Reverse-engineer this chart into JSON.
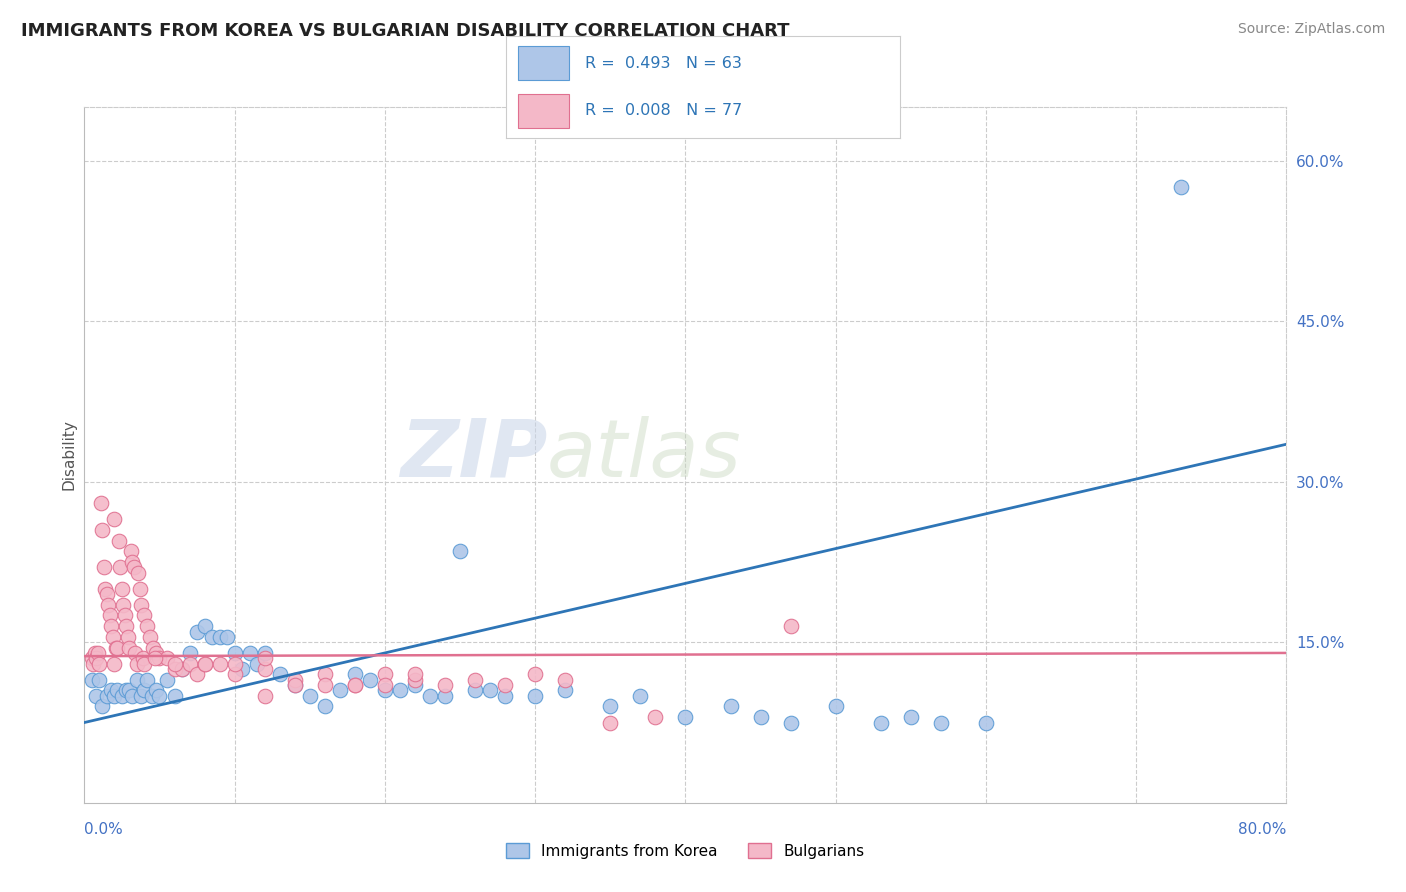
{
  "title": "IMMIGRANTS FROM KOREA VS BULGARIAN DISABILITY CORRELATION CHART",
  "source": "Source: ZipAtlas.com",
  "ylabel": "Disability",
  "right_yticks": [
    "60.0%",
    "45.0%",
    "30.0%",
    "15.0%"
  ],
  "right_ytick_vals": [
    0.6,
    0.45,
    0.3,
    0.15
  ],
  "watermark_zip": "ZIP",
  "watermark_atlas": "atlas",
  "background_color": "#ffffff",
  "plot_bg_color": "#ffffff",
  "grid_color": "#cccccc",
  "xlim": [
    0.0,
    0.8
  ],
  "ylim": [
    0.0,
    0.65
  ],
  "blue_scatter_x": [
    0.005,
    0.008,
    0.01,
    0.012,
    0.015,
    0.018,
    0.02,
    0.022,
    0.025,
    0.028,
    0.03,
    0.032,
    0.035,
    0.038,
    0.04,
    0.042,
    0.045,
    0.048,
    0.05,
    0.055,
    0.06,
    0.065,
    0.07,
    0.075,
    0.08,
    0.085,
    0.09,
    0.095,
    0.1,
    0.105,
    0.11,
    0.115,
    0.12,
    0.13,
    0.14,
    0.15,
    0.16,
    0.17,
    0.18,
    0.19,
    0.2,
    0.21,
    0.22,
    0.23,
    0.24,
    0.25,
    0.26,
    0.27,
    0.28,
    0.3,
    0.32,
    0.35,
    0.37,
    0.4,
    0.43,
    0.45,
    0.47,
    0.5,
    0.53,
    0.55,
    0.57,
    0.6,
    0.73
  ],
  "blue_scatter_y": [
    0.115,
    0.1,
    0.115,
    0.09,
    0.1,
    0.105,
    0.1,
    0.105,
    0.1,
    0.105,
    0.105,
    0.1,
    0.115,
    0.1,
    0.105,
    0.115,
    0.1,
    0.105,
    0.1,
    0.115,
    0.1,
    0.125,
    0.14,
    0.16,
    0.165,
    0.155,
    0.155,
    0.155,
    0.14,
    0.125,
    0.14,
    0.13,
    0.14,
    0.12,
    0.11,
    0.1,
    0.09,
    0.105,
    0.12,
    0.115,
    0.105,
    0.105,
    0.11,
    0.1,
    0.1,
    0.235,
    0.105,
    0.105,
    0.1,
    0.1,
    0.105,
    0.09,
    0.1,
    0.08,
    0.09,
    0.08,
    0.075,
    0.09,
    0.075,
    0.08,
    0.075,
    0.075,
    0.575
  ],
  "pink_scatter_x": [
    0.005,
    0.006,
    0.007,
    0.008,
    0.009,
    0.01,
    0.011,
    0.012,
    0.013,
    0.014,
    0.015,
    0.016,
    0.017,
    0.018,
    0.019,
    0.02,
    0.021,
    0.022,
    0.023,
    0.024,
    0.025,
    0.026,
    0.027,
    0.028,
    0.029,
    0.03,
    0.031,
    0.032,
    0.033,
    0.034,
    0.035,
    0.036,
    0.037,
    0.038,
    0.039,
    0.04,
    0.042,
    0.044,
    0.046,
    0.048,
    0.05,
    0.055,
    0.06,
    0.065,
    0.07,
    0.075,
    0.08,
    0.09,
    0.1,
    0.12,
    0.14,
    0.16,
    0.18,
    0.2,
    0.22,
    0.24,
    0.26,
    0.28,
    0.3,
    0.32,
    0.35,
    0.38,
    0.12,
    0.1,
    0.08,
    0.06,
    0.04,
    0.02,
    0.18,
    0.16,
    0.14,
    0.12,
    0.22,
    0.2,
    0.047,
    0.47
  ],
  "pink_scatter_y": [
    0.135,
    0.13,
    0.14,
    0.135,
    0.14,
    0.13,
    0.28,
    0.255,
    0.22,
    0.2,
    0.195,
    0.185,
    0.175,
    0.165,
    0.155,
    0.265,
    0.145,
    0.145,
    0.245,
    0.22,
    0.2,
    0.185,
    0.175,
    0.165,
    0.155,
    0.145,
    0.235,
    0.225,
    0.22,
    0.14,
    0.13,
    0.215,
    0.2,
    0.185,
    0.135,
    0.175,
    0.165,
    0.155,
    0.145,
    0.14,
    0.135,
    0.135,
    0.125,
    0.125,
    0.13,
    0.12,
    0.13,
    0.13,
    0.12,
    0.125,
    0.115,
    0.12,
    0.11,
    0.12,
    0.115,
    0.11,
    0.115,
    0.11,
    0.12,
    0.115,
    0.075,
    0.08,
    0.135,
    0.13,
    0.13,
    0.13,
    0.13,
    0.13,
    0.11,
    0.11,
    0.11,
    0.1,
    0.12,
    0.11,
    0.135,
    0.165
  ],
  "blue_line": {
    "x0": 0.0,
    "y0": 0.075,
    "x1": 0.8,
    "y1": 0.335
  },
  "pink_line": {
    "x0": 0.0,
    "y0": 0.137,
    "x1": 0.8,
    "y1": 0.14
  },
  "blue_color": "#aec6e8",
  "blue_edge": "#5b9bd5",
  "pink_color": "#f4b8c8",
  "pink_edge": "#e07090",
  "line_blue_color": "#2e75b6",
  "line_pink_color": "#e07090"
}
